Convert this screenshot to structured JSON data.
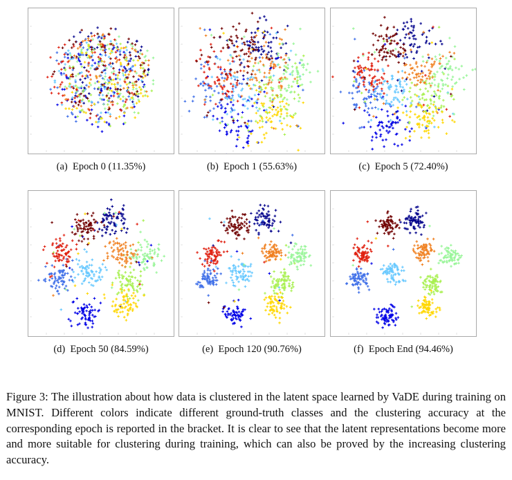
{
  "figure": {
    "number": "Figure 3:",
    "caption_lines": [
      "The illustration about how data is clustered in the latent space learned by VaDE during",
      "training on MNIST. Different colors indicate different ground-truth classes and the clustering",
      "accuracy at the corresponding epoch is reported in the bracket.  It is clear to see that the latent",
      "representations become more and more suitable for clustering during training, which can also be",
      "proved by the increasing clustering accuracy."
    ]
  },
  "panels": [
    {
      "label": "(a)",
      "title": "Epoch 0 (11.35%)"
    },
    {
      "label": "(b)",
      "title": "Epoch 1 (55.63%)"
    },
    {
      "label": "(c)",
      "title": "Epoch 5 (72.40%)"
    },
    {
      "label": "(d)",
      "title": "Epoch 50 (84.59%)"
    },
    {
      "label": "(e)",
      "title": "Epoch 120 (90.76%)"
    },
    {
      "label": "(f)",
      "title": "Epoch End (94.46%)"
    }
  ],
  "chart_data": [
    {
      "type": "scatter",
      "title": "(a) Epoch 0 (11.35%)",
      "epoch": "0",
      "accuracy_pct": 11.35,
      "description": "t-SNE latent space, 10 MNIST classes heavily mixed in one disc",
      "classes": 10
    },
    {
      "type": "scatter",
      "title": "(b) Epoch 1 (55.63%)",
      "epoch": "1",
      "accuracy_pct": 55.63,
      "description": "partial cluster formation",
      "classes": 10
    },
    {
      "type": "scatter",
      "title": "(c) Epoch 5 (72.40%)",
      "epoch": "5",
      "accuracy_pct": 72.4,
      "description": "clusters emerging",
      "classes": 10
    },
    {
      "type": "scatter",
      "title": "(d) Epoch 50 (84.59%)",
      "epoch": "50",
      "accuracy_pct": 84.59,
      "description": "well separated clusters",
      "classes": 10
    },
    {
      "type": "scatter",
      "title": "(e) Epoch 120 (90.76%)",
      "epoch": "120",
      "accuracy_pct": 90.76,
      "description": "well separated clusters",
      "classes": 10
    },
    {
      "type": "scatter",
      "title": "(f) Epoch End (94.46%)",
      "epoch": "End",
      "accuracy_pct": 94.46,
      "description": "10 distinct clusters",
      "classes": 10
    }
  ],
  "class_colors": [
    "#00008b",
    "#0000e6",
    "#3f6fe8",
    "#66c8ff",
    "#00d0f0",
    "#98f598",
    "#a8f050",
    "#ffd700",
    "#f08020",
    "#e02010",
    "#700000"
  ]
}
